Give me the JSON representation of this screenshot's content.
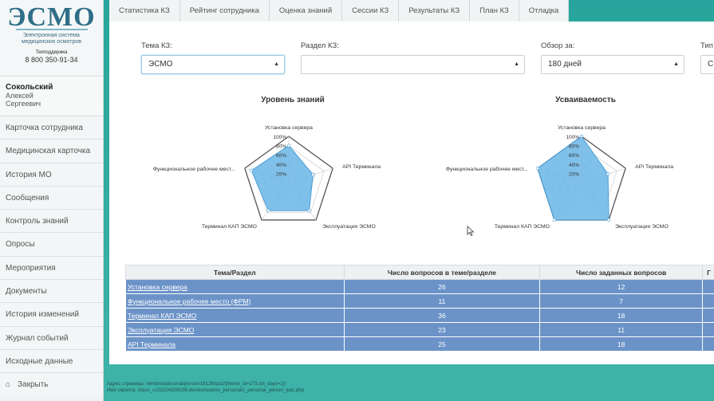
{
  "brand": {
    "logo": "ЭСМО",
    "tagline_1": "Электронная система",
    "tagline_2": "медицинских осмотров",
    "support_label": "Техподдержка",
    "support_phone": "8 800 350-91-34"
  },
  "user": {
    "last_name": "Сокольский",
    "first_name": "Алексей",
    "middle_name": "Сергеевич"
  },
  "nav": [
    {
      "label": "Карточка сотрудника"
    },
    {
      "label": "Медицинская карточка"
    },
    {
      "label": "История МО"
    },
    {
      "label": "Сообщения"
    },
    {
      "label": "Контроль знаний"
    },
    {
      "label": "Опросы"
    },
    {
      "label": "Мероприятия"
    },
    {
      "label": "Документы"
    },
    {
      "label": "История изменений"
    },
    {
      "label": "Журнал событий"
    },
    {
      "label": "Исходные данные"
    },
    {
      "label": "Закрыть",
      "icon": "home-icon"
    }
  ],
  "tabs": [
    {
      "label": "Статистика КЗ"
    },
    {
      "label": "Рейтинг сотрудника"
    },
    {
      "label": "Оценка знаний"
    },
    {
      "label": "Сессии КЗ"
    },
    {
      "label": "Результаты КЗ"
    },
    {
      "label": "План КЗ"
    },
    {
      "label": "Отладка"
    }
  ],
  "filters": {
    "topic_label": "Тема КЗ:",
    "topic_value": "ЭСМО",
    "section_label": "Раздел КЗ:",
    "section_value": "",
    "period_label": "Обзор за:",
    "period_value": "180 дней",
    "type_label": "Тип",
    "type_value": "С"
  },
  "charts_labels": {
    "ticks": [
      "20%",
      "40%",
      "60%",
      "80%",
      "100%"
    ],
    "axes": [
      "Установка сервера",
      "API Терминала",
      "Эксплуатация ЭСМО",
      "Терминал КАП ЭСМО",
      "Функциональное рабочее мест..."
    ]
  },
  "chart_data": [
    {
      "type": "radar",
      "title": "Уровень знаний",
      "categories": [
        "Установка сервера",
        "API Терминала",
        "Эксплуатация ЭСМО",
        "Терминал КАП ЭСМО",
        "Функциональное рабочее мест..."
      ],
      "values": [
        80,
        55,
        75,
        75,
        85
      ],
      "rlim": [
        0,
        100
      ],
      "color": "#6ab6e6"
    },
    {
      "type": "radar",
      "title": "Усваиваемость",
      "categories": [
        "Установка сервера",
        "API Терминала",
        "Эксплуатация ЭСМО",
        "Терминал КАП ЭСМО",
        "Функциональное рабочее мест..."
      ],
      "values": [
        100,
        60,
        100,
        100,
        100
      ],
      "rlim": [
        0,
        100
      ],
      "color": "#6ab6e6"
    }
  ],
  "table": {
    "headers": [
      "Тема/Раздел",
      "Число вопросов в теме/разделе",
      "Число заданных вопросов",
      "Г"
    ],
    "rows": [
      {
        "name": "Установка сервера",
        "total": "26",
        "asked": "12"
      },
      {
        "name": "Функциональное рабочее место (ФРМ)",
        "total": "11",
        "asked": "7"
      },
      {
        "name": "Терминал КАП ЭСМО",
        "total": "36",
        "asked": "18"
      },
      {
        "name": "Эксплуатация ЭСМО",
        "total": "23",
        "asked": "11"
      },
      {
        "name": "API Терминала",
        "total": "25",
        "asked": "18"
      }
    ]
  },
  "footer": {
    "line1": "Адрес страницы: /window/personal/person/18126/quiz/{theme_id=173,cnt_days=2}/",
    "line2": "Имя скрипта: /class_v.202104206295.dev/ext/aspmo_personal/c_personal_person_quiz.php"
  }
}
